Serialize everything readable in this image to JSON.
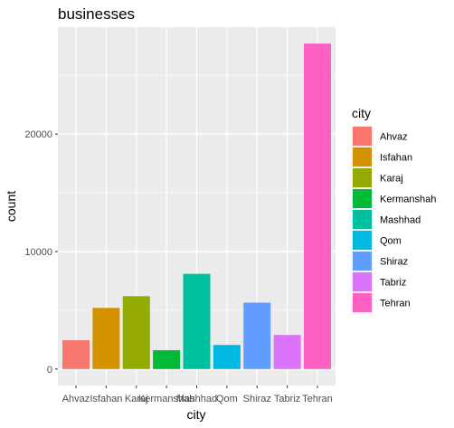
{
  "chart_data": {
    "type": "bar",
    "title": "businesses",
    "xlabel": "city",
    "ylabel": "count",
    "categories": [
      "Ahvaz",
      "Isfahan",
      "Karaj",
      "Kermanshah",
      "Mashhad",
      "Qom",
      "Shiraz",
      "Tabriz",
      "Tehran"
    ],
    "values": [
      2450,
      5200,
      6200,
      1600,
      8100,
      2050,
      5650,
      2900,
      27700
    ],
    "colors": [
      "#F8766D",
      "#D39200",
      "#93AA00",
      "#00BA38",
      "#00C19F",
      "#00B9E3",
      "#619CFF",
      "#DB72FB",
      "#FF61C3"
    ],
    "ylim": [
      -1400,
      29100
    ],
    "yticks": [
      0,
      10000,
      20000
    ],
    "ytick_labels": [
      "0",
      "10000",
      "20000"
    ],
    "grid": true,
    "panel_background": "#EBEBEB",
    "legend": {
      "title": "city",
      "placement": "right"
    }
  }
}
